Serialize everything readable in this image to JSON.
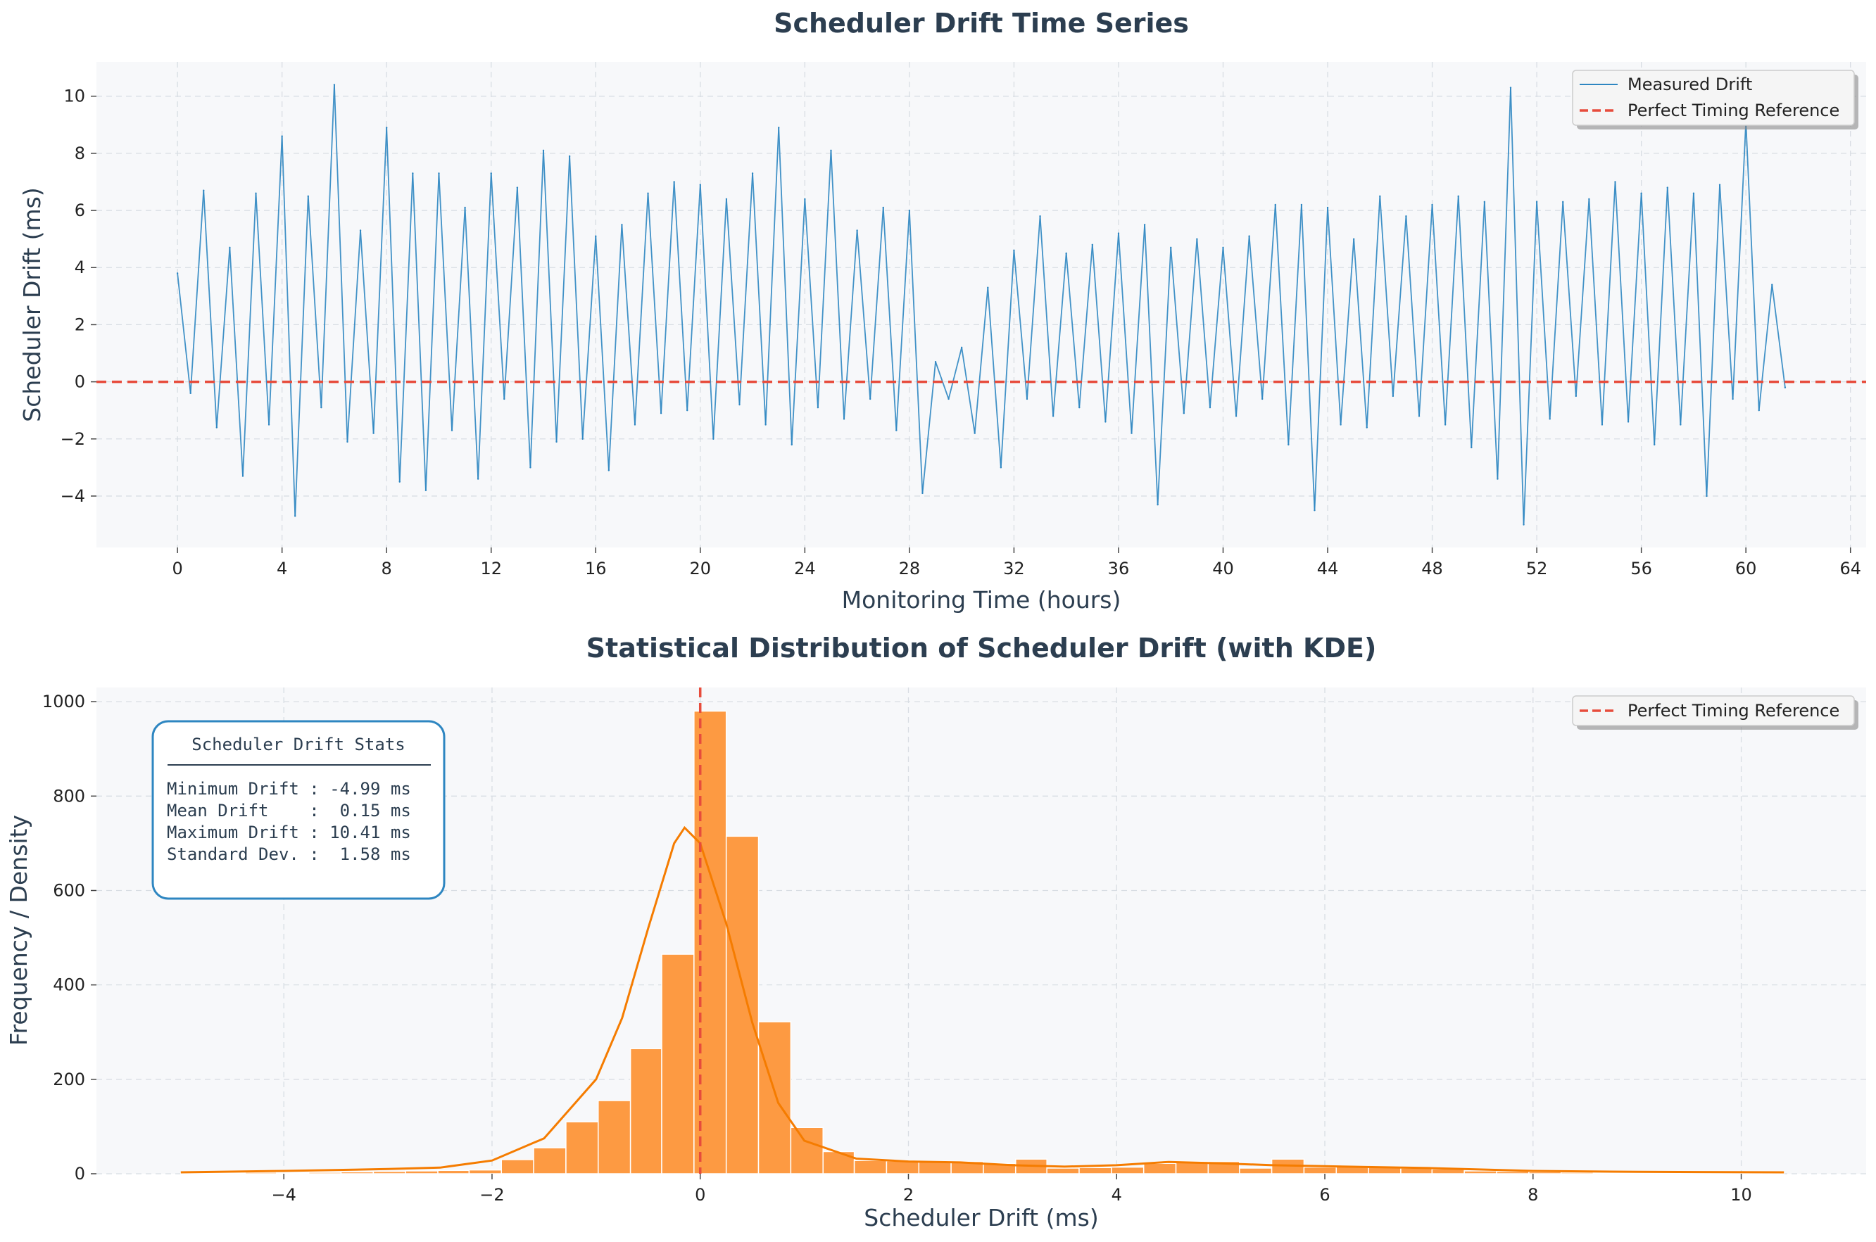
{
  "chart_data": [
    {
      "type": "line",
      "title": "Scheduler Drift Time Series",
      "xlabel": "Monitoring Time (hours)",
      "ylabel": "Scheduler Drift (ms)",
      "xlim": [
        -3.1,
        64.6
      ],
      "ylim": [
        -5.8,
        11.2
      ],
      "xticks": [
        0,
        4,
        8,
        12,
        16,
        20,
        24,
        28,
        32,
        36,
        40,
        44,
        48,
        52,
        56,
        60,
        64
      ],
      "yticks": [
        -4,
        -2,
        0,
        2,
        4,
        6,
        8,
        10
      ],
      "grid": true,
      "legend_position": "top-right",
      "series": [
        {
          "name": "Measured Drift",
          "color": "#2e86c1",
          "x": [
            0.0,
            0.5,
            1.0,
            1.5,
            2.0,
            2.5,
            3.0,
            3.5,
            4.0,
            4.5,
            5.0,
            5.5,
            6.0,
            6.5,
            7.0,
            7.5,
            8.0,
            8.5,
            9.0,
            9.5,
            10.0,
            10.5,
            11.0,
            11.5,
            12.0,
            12.5,
            13.0,
            13.5,
            14.0,
            14.5,
            15.0,
            15.5,
            16.0,
            16.5,
            17.0,
            17.5,
            18.0,
            18.5,
            19.0,
            19.5,
            20.0,
            20.5,
            21.0,
            21.5,
            22.0,
            22.5,
            23.0,
            23.5,
            24.0,
            24.5,
            25.0,
            25.5,
            26.0,
            26.5,
            27.0,
            27.5,
            28.0,
            28.5,
            29.0,
            29.5,
            30.0,
            30.5,
            31.0,
            31.5,
            32.0,
            32.5,
            33.0,
            33.5,
            34.0,
            34.5,
            35.0,
            35.5,
            36.0,
            36.5,
            37.0,
            37.5,
            38.0,
            38.5,
            39.0,
            39.5,
            40.0,
            40.5,
            41.0,
            41.5,
            42.0,
            42.5,
            43.0,
            43.5,
            44.0,
            44.5,
            45.0,
            45.5,
            46.0,
            46.5,
            47.0,
            47.5,
            48.0,
            48.5,
            49.0,
            49.5,
            50.0,
            50.5,
            51.0,
            51.5,
            52.0,
            52.5,
            53.0,
            53.5,
            54.0,
            54.5,
            55.0,
            55.5,
            56.0,
            56.5,
            57.0,
            57.5,
            58.0,
            58.5,
            59.0,
            59.5,
            60.0,
            60.5,
            61.0,
            61.5
          ],
          "y": [
            3.8,
            -0.4,
            6.7,
            -1.6,
            4.7,
            -3.3,
            6.6,
            -1.5,
            8.6,
            -4.7,
            6.5,
            -0.9,
            10.4,
            -2.1,
            5.3,
            -1.8,
            8.9,
            -3.5,
            7.3,
            -3.8,
            7.3,
            -1.7,
            6.1,
            -3.4,
            7.3,
            -0.6,
            6.8,
            -3.0,
            8.1,
            -2.1,
            7.9,
            -2.0,
            5.1,
            -3.1,
            5.5,
            -1.5,
            6.6,
            -1.1,
            7.0,
            -1.0,
            6.9,
            -2.0,
            6.4,
            -0.8,
            7.3,
            -1.5,
            8.9,
            -2.2,
            6.4,
            -0.9,
            8.1,
            -1.3,
            5.3,
            -0.6,
            6.1,
            -1.7,
            6.0,
            -3.9,
            0.7,
            -0.6,
            1.2,
            -1.8,
            3.3,
            -3.0,
            4.6,
            -0.6,
            5.8,
            -1.2,
            4.5,
            -0.9,
            4.8,
            -1.4,
            5.2,
            -1.8,
            5.5,
            -4.3,
            4.7,
            -1.1,
            5.0,
            -0.9,
            4.7,
            -1.2,
            5.1,
            -0.6,
            6.2,
            -2.2,
            6.2,
            -4.5,
            6.1,
            -1.5,
            5.0,
            -1.6,
            6.5,
            -0.5,
            5.8,
            -1.2,
            6.2,
            -1.5,
            6.5,
            -2.3,
            6.3,
            -3.4,
            10.3,
            -5.0,
            6.3,
            -1.3,
            6.3,
            -0.5,
            6.4,
            -1.5,
            7.0,
            -1.4,
            6.6,
            -2.2,
            6.8,
            -1.5,
            6.6,
            -4.0,
            6.9,
            -0.6,
            9.1,
            -1.0,
            3.4,
            -0.2
          ]
        },
        {
          "name": "Perfect Timing Reference",
          "color": "#e74c3c",
          "y": 0
        }
      ]
    },
    {
      "type": "bar",
      "title": "Statistical Distribution of Scheduler Drift (with KDE)",
      "xlabel": "Scheduler Drift (ms)",
      "ylabel": "Frequency / Density",
      "xlim": [
        -5.8,
        11.2
      ],
      "ylim": [
        0,
        1030
      ],
      "xticks": [
        -4,
        -2,
        0,
        2,
        4,
        6,
        8,
        10
      ],
      "yticks": [
        0,
        200,
        400,
        600,
        800,
        1000
      ],
      "grid": true,
      "legend_position": "top-right",
      "bin_edges": [
        -4.99,
        -4.68,
        -4.37,
        -4.07,
        -3.76,
        -3.45,
        -3.14,
        -2.83,
        -2.52,
        -2.22,
        -1.91,
        -1.6,
        -1.29,
        -0.98,
        -0.67,
        -0.37,
        -0.06,
        0.25,
        0.56,
        0.87,
        1.18,
        1.48,
        1.79,
        2.1,
        2.41,
        2.72,
        3.03,
        3.33,
        3.64,
        3.95,
        4.26,
        4.57,
        4.88,
        5.18,
        5.49,
        5.8,
        6.11,
        6.42,
        6.73,
        7.03,
        7.34,
        7.65,
        7.96,
        8.27,
        8.58,
        8.88,
        9.19,
        9.5,
        9.81,
        10.12,
        10.41
      ],
      "counts": [
        2,
        2,
        3,
        2,
        3,
        4,
        5,
        6,
        7,
        8,
        30,
        55,
        110,
        155,
        265,
        465,
        980,
        715,
        322,
        98,
        47,
        28,
        27,
        26,
        26,
        22,
        31,
        12,
        13,
        14,
        22,
        26,
        26,
        12,
        31,
        14,
        16,
        15,
        12,
        10,
        6,
        5,
        4,
        3,
        2,
        2,
        2,
        1,
        1,
        1
      ],
      "kde": {
        "name": "KDE",
        "color": "#f57c00",
        "x": [
          -4.99,
          -4.0,
          -3.0,
          -2.5,
          -2.0,
          -1.5,
          -1.0,
          -0.75,
          -0.5,
          -0.25,
          -0.15,
          0.0,
          0.25,
          0.5,
          0.75,
          1.0,
          1.5,
          2.0,
          2.5,
          3.0,
          3.5,
          4.0,
          4.5,
          5.0,
          5.5,
          6.0,
          6.5,
          7.0,
          8.0,
          9.0,
          10.41
        ],
        "y": [
          3,
          6,
          10,
          13,
          28,
          75,
          200,
          330,
          520,
          700,
          733,
          700,
          530,
          320,
          150,
          70,
          32,
          26,
          24,
          18,
          15,
          18,
          25,
          22,
          18,
          16,
          14,
          12,
          6,
          4,
          3
        ]
      },
      "reference": {
        "name": "Perfect Timing Reference",
        "x": 0,
        "color": "#e74c3c"
      },
      "stats_box": {
        "title": "Scheduler Drift Stats",
        "lines": [
          "Minimum Drift : -4.99 ms",
          "Mean Drift    :  0.15 ms",
          "Maximum Drift : 10.41 ms",
          "Standard Dev. :  1.58 ms"
        ]
      }
    }
  ]
}
